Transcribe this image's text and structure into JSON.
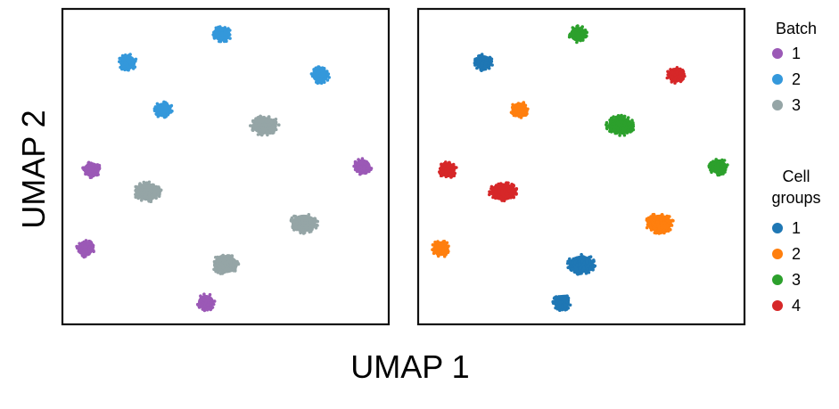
{
  "chart_data": {
    "type": "scatter",
    "xlabel": "UMAP 1",
    "ylabel": "UMAP 2",
    "ticks": "none",
    "grid": false,
    "legend_placement": "right",
    "legends": [
      {
        "title": "Batch",
        "entries": [
          {
            "label": "1",
            "color": "#9b59b6"
          },
          {
            "label": "2",
            "color": "#3498db"
          },
          {
            "label": "3",
            "color": "#95a5a6"
          }
        ]
      },
      {
        "title": "Cell\ngroups",
        "entries": [
          {
            "label": "1",
            "color": "#1f77b4"
          },
          {
            "label": "2",
            "color": "#ff7f0e"
          },
          {
            "label": "3",
            "color": "#2ca02c"
          },
          {
            "label": "4",
            "color": "#d62728"
          }
        ]
      }
    ],
    "panels": [
      {
        "color_by": "Batch",
        "clusters": [
          {
            "x": 0.49,
            "y": 0.92,
            "batch": "2",
            "size": "small"
          },
          {
            "x": 0.2,
            "y": 0.83,
            "batch": "2",
            "size": "small"
          },
          {
            "x": 0.79,
            "y": 0.79,
            "batch": "2",
            "size": "small"
          },
          {
            "x": 0.31,
            "y": 0.68,
            "batch": "2",
            "size": "small"
          },
          {
            "x": 0.62,
            "y": 0.63,
            "batch": "3",
            "size": "large"
          },
          {
            "x": 0.09,
            "y": 0.49,
            "batch": "1",
            "size": "small"
          },
          {
            "x": 0.92,
            "y": 0.5,
            "batch": "1",
            "size": "small"
          },
          {
            "x": 0.26,
            "y": 0.42,
            "batch": "3",
            "size": "large"
          },
          {
            "x": 0.74,
            "y": 0.32,
            "batch": "3",
            "size": "large"
          },
          {
            "x": 0.07,
            "y": 0.24,
            "batch": "1",
            "size": "small"
          },
          {
            "x": 0.5,
            "y": 0.19,
            "batch": "3",
            "size": "large"
          },
          {
            "x": 0.44,
            "y": 0.07,
            "batch": "1",
            "size": "small"
          }
        ]
      },
      {
        "color_by": "Cell groups",
        "clusters": [
          {
            "x": 0.49,
            "y": 0.92,
            "group": "3",
            "size": "small"
          },
          {
            "x": 0.2,
            "y": 0.83,
            "group": "1",
            "size": "small"
          },
          {
            "x": 0.79,
            "y": 0.79,
            "group": "4",
            "size": "small"
          },
          {
            "x": 0.31,
            "y": 0.68,
            "group": "2",
            "size": "small"
          },
          {
            "x": 0.62,
            "y": 0.63,
            "group": "3",
            "size": "large"
          },
          {
            "x": 0.09,
            "y": 0.49,
            "group": "4",
            "size": "small"
          },
          {
            "x": 0.92,
            "y": 0.5,
            "group": "3",
            "size": "small"
          },
          {
            "x": 0.26,
            "y": 0.42,
            "group": "4",
            "size": "large"
          },
          {
            "x": 0.74,
            "y": 0.32,
            "group": "2",
            "size": "large"
          },
          {
            "x": 0.07,
            "y": 0.24,
            "group": "2",
            "size": "small"
          },
          {
            "x": 0.5,
            "y": 0.19,
            "group": "1",
            "size": "large"
          },
          {
            "x": 0.44,
            "y": 0.07,
            "group": "1",
            "size": "small"
          }
        ]
      }
    ]
  }
}
